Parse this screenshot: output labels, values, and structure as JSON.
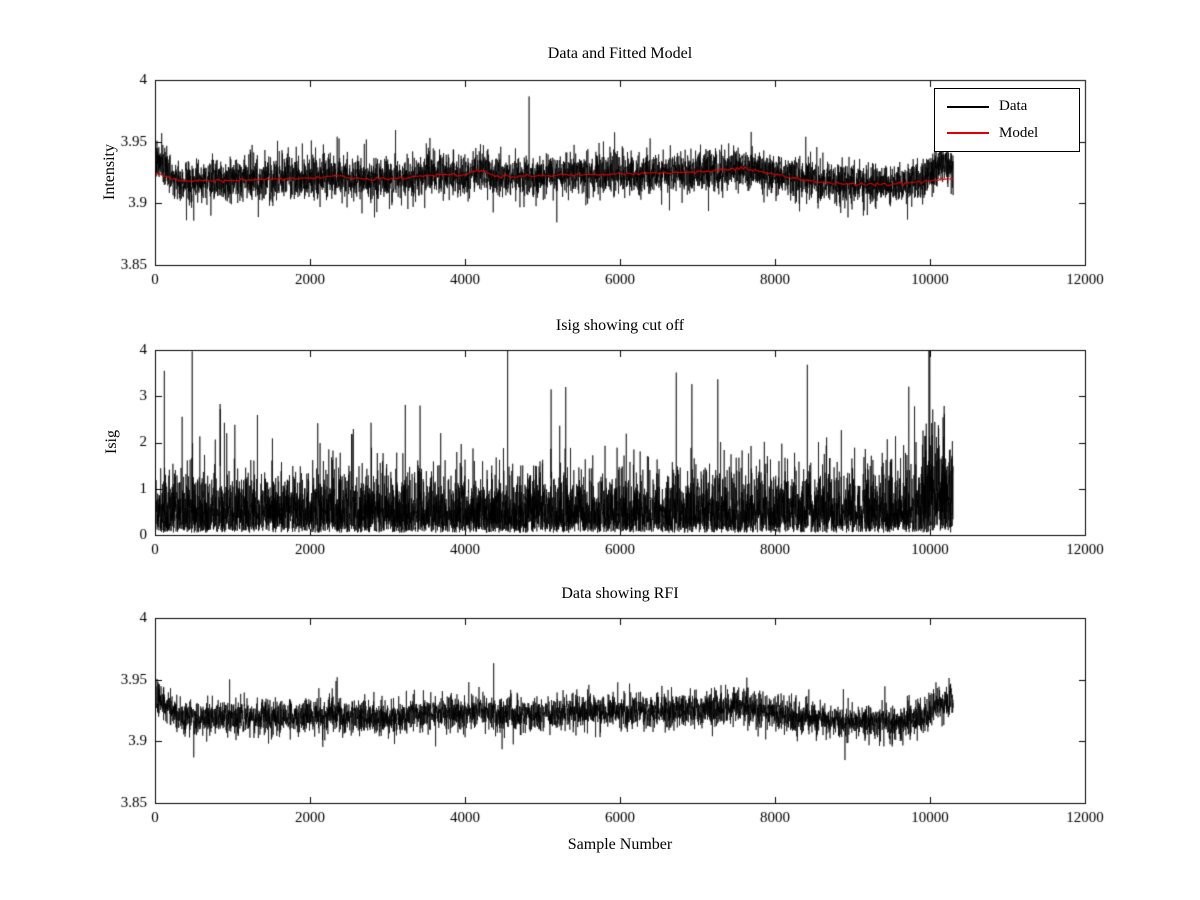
{
  "figure": {
    "background": "#ffffff"
  },
  "chart_data": [
    {
      "type": "line",
      "title": "Data and Fitted Model",
      "xlabel": "",
      "ylabel": "Intensity",
      "xlim": [
        0,
        12000
      ],
      "ylim": [
        3.85,
        4
      ],
      "xticks": [
        0,
        2000,
        4000,
        6000,
        8000,
        10000,
        12000
      ],
      "xtick_labels": [
        "0",
        "2000",
        "4000",
        "6000",
        "8000",
        "10000",
        "12000"
      ],
      "yticks": [
        3.85,
        3.9,
        3.95,
        4
      ],
      "ytick_labels": [
        "3.85",
        "3.9",
        "3.95",
        "4"
      ],
      "grid": false,
      "legend": {
        "position": "northeast",
        "entries": [
          {
            "label": "Data",
            "color": "#000000"
          },
          {
            "label": "Model",
            "color": "#e00000"
          }
        ]
      },
      "series": [
        {
          "name": "Data",
          "kind": "noisy",
          "color": "#000000",
          "seed": 7,
          "points": 5500,
          "x_end": 10300,
          "noise_sd": 0.0085,
          "tail_prob": 0.015,
          "tail_mult": 2.1,
          "trend": [
            [
              0,
              3.9355
            ],
            [
              120,
              3.9295
            ],
            [
              300,
              3.9185
            ],
            [
              800,
              3.9185
            ],
            [
              1400,
              3.9195
            ],
            [
              2000,
              3.9205
            ],
            [
              2350,
              3.9225
            ],
            [
              2700,
              3.9195
            ],
            [
              3200,
              3.9205
            ],
            [
              3600,
              3.9235
            ],
            [
              4000,
              3.9225
            ],
            [
              4200,
              3.9275
            ],
            [
              4400,
              3.9215
            ],
            [
              5000,
              3.9225
            ],
            [
              5600,
              3.9235
            ],
            [
              6400,
              3.9245
            ],
            [
              7000,
              3.9255
            ],
            [
              7600,
              3.9285
            ],
            [
              8000,
              3.9235
            ],
            [
              8400,
              3.9185
            ],
            [
              8900,
              3.9155
            ],
            [
              9500,
              3.915
            ],
            [
              9900,
              3.9185
            ],
            [
              10080,
              3.93
            ],
            [
              10300,
              3.933
            ]
          ],
          "spikes": [
            {
              "x": 500,
              "y": 3.886
            },
            {
              "x": 2350,
              "y": 3.954
            },
            {
              "x": 4200,
              "y": 3.948
            }
          ]
        },
        {
          "name": "Model",
          "kind": "smooth",
          "color": "#e00000",
          "seed": 3,
          "points": 400,
          "x_end": 10300,
          "noise_sd": 0.0006,
          "trend": [
            [
              0,
              3.9245
            ],
            [
              300,
              3.9185
            ],
            [
              800,
              3.9185
            ],
            [
              1400,
              3.9195
            ],
            [
              2000,
              3.9205
            ],
            [
              2350,
              3.9225
            ],
            [
              2700,
              3.9195
            ],
            [
              3200,
              3.9205
            ],
            [
              3600,
              3.9235
            ],
            [
              4000,
              3.9225
            ],
            [
              4200,
              3.9275
            ],
            [
              4400,
              3.9215
            ],
            [
              5000,
              3.9225
            ],
            [
              5600,
              3.9235
            ],
            [
              6400,
              3.9245
            ],
            [
              7000,
              3.9255
            ],
            [
              7600,
              3.9285
            ],
            [
              8000,
              3.9235
            ],
            [
              8400,
              3.9185
            ],
            [
              8900,
              3.9155
            ],
            [
              9500,
              3.915
            ],
            [
              9900,
              3.9175
            ],
            [
              10300,
              3.9205
            ]
          ]
        }
      ]
    },
    {
      "type": "line",
      "title": "Isig showing cut off",
      "xlabel": "",
      "ylabel": "Isig",
      "xlim": [
        0,
        12000
      ],
      "ylim": [
        0,
        4
      ],
      "xticks": [
        0,
        2000,
        4000,
        6000,
        8000,
        10000,
        12000
      ],
      "xtick_labels": [
        "0",
        "2000",
        "4000",
        "6000",
        "8000",
        "10000",
        "12000"
      ],
      "yticks": [
        0,
        1,
        2,
        3,
        4
      ],
      "ytick_labels": [
        "0",
        "1",
        "2",
        "3",
        "4"
      ],
      "grid": false,
      "series": [
        {
          "name": "Isig",
          "kind": "halfnoise",
          "color": "#000000",
          "seed": 11,
          "points": 6500,
          "x_end": 10300,
          "base": 0.05,
          "scale": 0.62,
          "tail_prob": 0.02,
          "tail_mult": 2.4,
          "end_from": 9900,
          "end_mult": 1.8,
          "spikes": [
            {
              "x": 120,
              "y": 3.55
            },
            {
              "x": 480,
              "y": 3.97
            },
            {
              "x": 5300,
              "y": 3.2
            }
          ]
        }
      ]
    },
    {
      "type": "line",
      "title": "Data showing RFI",
      "xlabel": "Sample Number",
      "ylabel": "",
      "xlim": [
        0,
        12000
      ],
      "ylim": [
        3.85,
        4
      ],
      "xticks": [
        0,
        2000,
        4000,
        6000,
        8000,
        10000,
        12000
      ],
      "xtick_labels": [
        "0",
        "2000",
        "4000",
        "6000",
        "8000",
        "10000",
        "12000"
      ],
      "yticks": [
        3.85,
        3.9,
        3.95,
        4
      ],
      "ytick_labels": [
        "3.85",
        "3.9",
        "3.95",
        "4"
      ],
      "grid": false,
      "series": [
        {
          "name": "Data",
          "kind": "noisy",
          "color": "#000000",
          "seed": 13,
          "points": 5500,
          "x_end": 10300,
          "noise_sd": 0.007,
          "tail_prob": 0.012,
          "tail_mult": 2.0,
          "trend": [
            [
              0,
              3.9355
            ],
            [
              120,
              3.9295
            ],
            [
              300,
              3.9185
            ],
            [
              800,
              3.9185
            ],
            [
              1400,
              3.9195
            ],
            [
              2000,
              3.9205
            ],
            [
              2350,
              3.9225
            ],
            [
              2700,
              3.9195
            ],
            [
              3200,
              3.9205
            ],
            [
              3600,
              3.9235
            ],
            [
              4000,
              3.9225
            ],
            [
              4200,
              3.9275
            ],
            [
              4400,
              3.9215
            ],
            [
              5000,
              3.9225
            ],
            [
              5600,
              3.9235
            ],
            [
              6400,
              3.9245
            ],
            [
              7000,
              3.9255
            ],
            [
              7600,
              3.9285
            ],
            [
              8000,
              3.9235
            ],
            [
              8400,
              3.9185
            ],
            [
              8900,
              3.9155
            ],
            [
              9500,
              3.915
            ],
            [
              9900,
              3.9185
            ],
            [
              10080,
              3.93
            ],
            [
              10300,
              3.933
            ]
          ],
          "spikes": [
            {
              "x": 500,
              "y": 3.887
            },
            {
              "x": 2350,
              "y": 3.952
            }
          ]
        }
      ]
    }
  ]
}
